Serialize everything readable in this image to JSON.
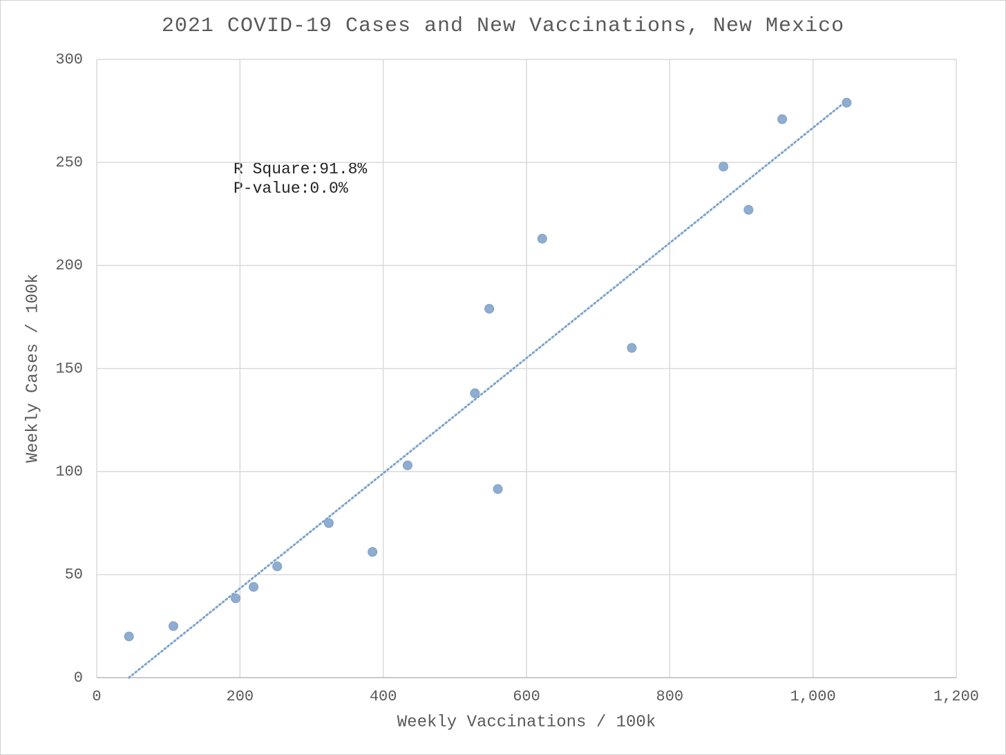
{
  "chart_data": {
    "type": "scatter",
    "title": "2021 COVID-19 Cases and New Vaccinations, New Mexico",
    "x_label": "Weekly Vaccinations / 100k",
    "y_label": "Weekly Cases / 100k",
    "annotations": [
      "R Square:91.8%",
      "P-value:0.0%"
    ],
    "series": [
      {
        "color": "#8eadd0",
        "x": [
          45,
          107,
          194,
          219,
          252,
          324,
          385,
          434,
          528,
          548,
          560,
          622,
          747,
          875,
          910,
          957,
          1047
        ],
        "values": [
          20,
          25,
          38.5,
          44,
          54,
          75,
          61,
          103,
          138,
          179,
          91.5,
          213,
          160,
          248,
          227,
          271,
          279
        ]
      }
    ],
    "trendline": {
      "color": "#7ba3cc",
      "x": [
        45,
        1040
      ],
      "values": [
        0,
        278
      ]
    },
    "xlim": [
      0,
      1200
    ],
    "ylim": [
      0,
      300
    ],
    "xticks": [
      0,
      200,
      400,
      600,
      800,
      {
        "value": 1000,
        "label": "1,000"
      },
      {
        "value": 1200,
        "label": "1,200"
      }
    ],
    "yticks": [
      0,
      50,
      100,
      150,
      200,
      250,
      300
    ],
    "grid": true
  }
}
